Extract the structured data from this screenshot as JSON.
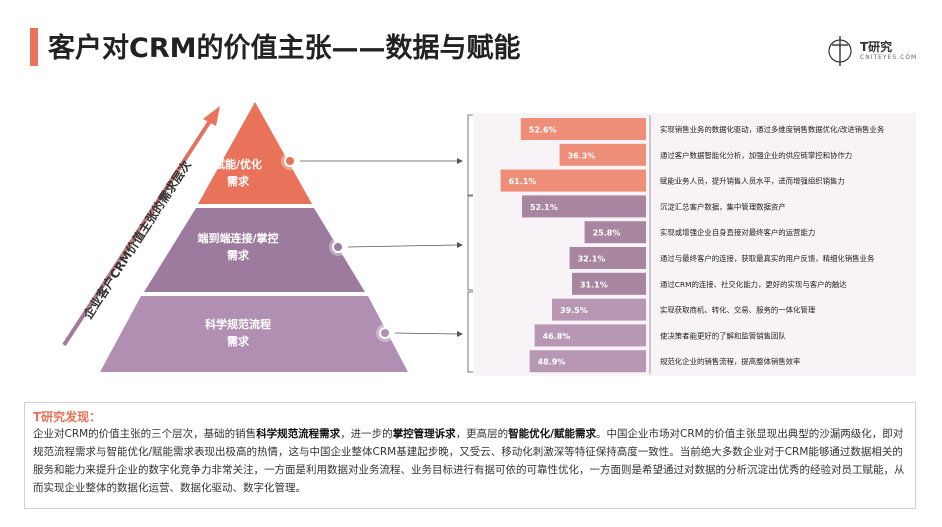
{
  "header": {
    "title": "客户对CRM的价值主张——数据与赋能",
    "accent_color": "#E8735A"
  },
  "logo": {
    "brand": "T研究",
    "url": "CNITEYES.COM"
  },
  "chart_data": {
    "type": "bar",
    "axis_label": "企业客户CRM价值主张的需求层次",
    "levels": [
      {
        "label": "赋能/优化\n需求",
        "color": "#E8735A",
        "bar_color": "#EE8E78"
      },
      {
        "label": "端到端连接/掌控\n需求",
        "color": "#9C7B9E",
        "bar_color": "#A9869F"
      },
      {
        "label": "科学规范流程\n需求",
        "color": "#B08FB3",
        "bar_color": "#B897B5"
      }
    ],
    "categories": [
      "实现销售业务的数据化驱动，通过多维度销售数据优化/改进销售业务",
      "通过客户数据智能化分析，加强企业的供应链掌控和协作力",
      "赋能业务人员，提升销售人员水平，进而增强组织销售力",
      "沉淀汇总客户数据，集中管理数据资产",
      "实现或增强企业自身直接对最终客户的运营能力",
      "通过与最终客户的连接，获取最真实的用户反馈，精细化销售业务",
      "通过CRM的连接、社交化能力，更好的实现与客户的触达",
      "实现获取商机、转化、交易、服务的一体化管理",
      "使决策者能更好的了解和监管销售团队",
      "规范化企业的销售流程，提高整体销售效率"
    ],
    "values": [
      52.6,
      36.3,
      61.1,
      52.1,
      25.8,
      32.1,
      31.1,
      39.5,
      46.8,
      48.9
    ],
    "value_labels": [
      "52.6%",
      "36.3%",
      "61.1%",
      "52.1%",
      "25.8%",
      "32.1%",
      "31.1%",
      "39.5%",
      "46.8%",
      "48.9%"
    ],
    "groups": [
      0,
      0,
      0,
      1,
      1,
      1,
      1,
      2,
      2,
      2
    ],
    "unit": "%",
    "xlim": [
      0,
      100
    ]
  },
  "finding": {
    "heading": "T研究发现：",
    "p1": "企业对CRM的价值主张的三个层次，基础的销售",
    "b1": "科学规范流程需求",
    "p2": "，进一步的",
    "b2": "掌控管理诉求",
    "p3": "，更高层的",
    "b3": "智能优化/赋能需求",
    "p4": "。中国企业市场对CRM的价值主张显现出典型的沙漏两级化，即对规范流程需求与智能优化/赋能需求表现出极高的热情，这与中国企业整体CRM基建起步晚，又受云、移动化刺激深等特征保持高度一致性。当前绝大多数企业对于CRM能够通过数据相关的服务和能力来提升企业的数字化竞争力非常关注，一方面是利用数据对业务流程、业务目标进行有据可依的可靠性优化，一方面则是希望通过对数据的分析沉淀出优秀的经验对员工赋能，从而实现企业整体的数据化运营、数据化驱动、数字化管理。",
    "heading_color": "#E8735A"
  }
}
